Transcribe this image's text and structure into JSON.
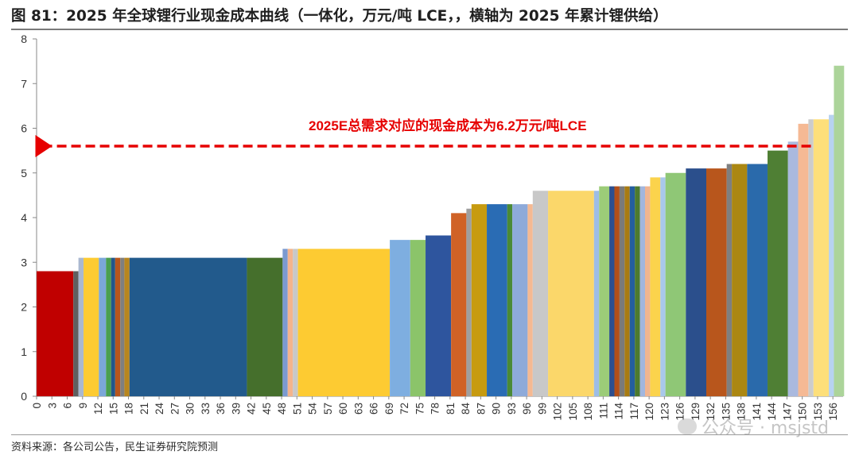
{
  "figure": {
    "title": "图 81：2025 年全球锂行业现金成本曲线（一体化，万元/吨 LCE，，横轴为 2025 年累计锂供给）",
    "source": "资料来源：各公司公告，民生证券研究院预测",
    "watermark": "公众号 · msjstd"
  },
  "chart_data": {
    "type": "bar",
    "subtype": "cost-curve (variable-width bars on cumulative supply axis)",
    "title": "2025 年全球锂行业现金成本曲线（一体化，万元/吨 LCE，，横轴为 2025 年累计锂供给）",
    "xlabel": "",
    "ylabel": "",
    "ylim": [
      0,
      8
    ],
    "yticks": [
      0,
      1,
      2,
      3,
      4,
      5,
      6,
      7,
      8
    ],
    "xlim": [
      0,
      158
    ],
    "xticks": [
      0,
      3,
      6,
      9,
      12,
      15,
      18,
      21,
      24,
      27,
      30,
      33,
      36,
      39,
      42,
      45,
      48,
      51,
      54,
      57,
      60,
      63,
      66,
      69,
      72,
      75,
      78,
      81,
      84,
      87,
      90,
      93,
      96,
      99,
      102,
      105,
      108,
      111,
      114,
      117,
      120,
      123,
      126,
      129,
      132,
      135,
      138,
      141,
      144,
      147,
      150,
      153,
      156
    ],
    "grid": false,
    "legend": "none",
    "bars": [
      {
        "x0": 0.0,
        "x1": 7.2,
        "value": 2.8,
        "color": "#c00000"
      },
      {
        "x0": 7.2,
        "x1": 8.2,
        "value": 2.8,
        "color": "#5f5f5f"
      },
      {
        "x0": 8.2,
        "x1": 9.2,
        "value": 3.1,
        "color": "#aab8d0"
      },
      {
        "x0": 9.2,
        "x1": 12.2,
        "value": 3.1,
        "color": "#fdcb32"
      },
      {
        "x0": 12.2,
        "x1": 13.6,
        "value": 3.1,
        "color": "#7ba7d8"
      },
      {
        "x0": 13.6,
        "x1": 14.6,
        "value": 3.1,
        "color": "#4a9f4e"
      },
      {
        "x0": 14.6,
        "x1": 15.4,
        "value": 3.1,
        "color": "#23568a"
      },
      {
        "x0": 15.4,
        "x1": 16.4,
        "value": 3.1,
        "color": "#b8561c"
      },
      {
        "x0": 16.4,
        "x1": 17.2,
        "value": 3.1,
        "color": "#7f7f7f"
      },
      {
        "x0": 17.2,
        "x1": 18.2,
        "value": 3.1,
        "color": "#b8861e"
      },
      {
        "x0": 18.2,
        "x1": 41.2,
        "value": 3.1,
        "color": "#225a8c"
      },
      {
        "x0": 41.2,
        "x1": 48.2,
        "value": 3.1,
        "color": "#456f2c"
      },
      {
        "x0": 48.2,
        "x1": 49.2,
        "value": 3.3,
        "color": "#7b9ad0"
      },
      {
        "x0": 49.2,
        "x1": 50.2,
        "value": 3.3,
        "color": "#f4b48c"
      },
      {
        "x0": 50.2,
        "x1": 51.2,
        "value": 3.3,
        "color": "#c8c8c8"
      },
      {
        "x0": 51.2,
        "x1": 69.2,
        "value": 3.3,
        "color": "#fdcb32"
      },
      {
        "x0": 69.2,
        "x1": 73.2,
        "value": 3.5,
        "color": "#7eaee0"
      },
      {
        "x0": 73.2,
        "x1": 76.2,
        "value": 3.5,
        "color": "#8bc46a"
      },
      {
        "x0": 76.2,
        "x1": 81.2,
        "value": 3.6,
        "color": "#2e559e"
      },
      {
        "x0": 81.2,
        "x1": 84.2,
        "value": 4.1,
        "color": "#d06226"
      },
      {
        "x0": 84.2,
        "x1": 85.2,
        "value": 4.2,
        "color": "#9f9f9f"
      },
      {
        "x0": 85.2,
        "x1": 88.2,
        "value": 4.3,
        "color": "#c79b10"
      },
      {
        "x0": 88.2,
        "x1": 92.2,
        "value": 4.3,
        "color": "#2a6cb4"
      },
      {
        "x0": 92.2,
        "x1": 93.2,
        "value": 4.3,
        "color": "#4b8a36"
      },
      {
        "x0": 93.2,
        "x1": 96.2,
        "value": 4.3,
        "color": "#8eaad9"
      },
      {
        "x0": 96.2,
        "x1": 97.2,
        "value": 4.3,
        "color": "#f5b992"
      },
      {
        "x0": 97.2,
        "x1": 100.2,
        "value": 4.6,
        "color": "#c8c8c8"
      },
      {
        "x0": 100.2,
        "x1": 109.2,
        "value": 4.6,
        "color": "#fbd76a"
      },
      {
        "x0": 109.2,
        "x1": 110.2,
        "value": 4.6,
        "color": "#9dbde6"
      },
      {
        "x0": 110.2,
        "x1": 112.2,
        "value": 4.7,
        "color": "#9ccc78"
      },
      {
        "x0": 112.2,
        "x1": 113.2,
        "value": 4.7,
        "color": "#2d4f8f"
      },
      {
        "x0": 113.2,
        "x1": 114.2,
        "value": 4.7,
        "color": "#b34f18"
      },
      {
        "x0": 114.2,
        "x1": 115.2,
        "value": 4.7,
        "color": "#7a7a7a"
      },
      {
        "x0": 115.2,
        "x1": 116.2,
        "value": 4.7,
        "color": "#a87b12"
      },
      {
        "x0": 116.2,
        "x1": 117.2,
        "value": 4.7,
        "color": "#245e9e"
      },
      {
        "x0": 117.2,
        "x1": 118.2,
        "value": 4.7,
        "color": "#4d7a2e"
      },
      {
        "x0": 118.2,
        "x1": 119.2,
        "value": 4.7,
        "color": "#a2b6de"
      },
      {
        "x0": 119.2,
        "x1": 120.2,
        "value": 4.7,
        "color": "#f1b590"
      },
      {
        "x0": 120.2,
        "x1": 122.2,
        "value": 4.9,
        "color": "#fbd34c"
      },
      {
        "x0": 122.2,
        "x1": 123.2,
        "value": 4.9,
        "color": "#a9c8ea"
      },
      {
        "x0": 123.2,
        "x1": 127.2,
        "value": 5.0,
        "color": "#8fc776"
      },
      {
        "x0": 127.2,
        "x1": 131.2,
        "value": 5.1,
        "color": "#2b4f8c"
      },
      {
        "x0": 131.2,
        "x1": 135.2,
        "value": 5.1,
        "color": "#b8561c"
      },
      {
        "x0": 135.2,
        "x1": 136.2,
        "value": 5.2,
        "color": "#7f7f7f"
      },
      {
        "x0": 136.2,
        "x1": 139.2,
        "value": 5.2,
        "color": "#ab8712"
      },
      {
        "x0": 139.2,
        "x1": 143.2,
        "value": 5.2,
        "color": "#2a6aab"
      },
      {
        "x0": 143.2,
        "x1": 147.2,
        "value": 5.5,
        "color": "#4f7f34"
      },
      {
        "x0": 147.2,
        "x1": 149.2,
        "value": 5.7,
        "color": "#aab9de"
      },
      {
        "x0": 149.2,
        "x1": 151.2,
        "value": 6.1,
        "color": "#f5b994"
      },
      {
        "x0": 151.2,
        "x1": 152.2,
        "value": 6.2,
        "color": "#cccccc"
      },
      {
        "x0": 152.2,
        "x1": 155.2,
        "value": 6.2,
        "color": "#fddf7a"
      },
      {
        "x0": 155.2,
        "x1": 156.2,
        "value": 6.3,
        "color": "#b7d2f0"
      },
      {
        "x0": 156.2,
        "x1": 158.2,
        "value": 7.4,
        "color": "#acd49a"
      }
    ],
    "annotation": {
      "text": "2025E总需求对应的现金成本为6.2万元/吨LCE",
      "y": 5.6,
      "arrow_from_x": 151.7,
      "arrow_to_x": 0,
      "color": "#e60000",
      "style": "dashed-arrow"
    }
  }
}
